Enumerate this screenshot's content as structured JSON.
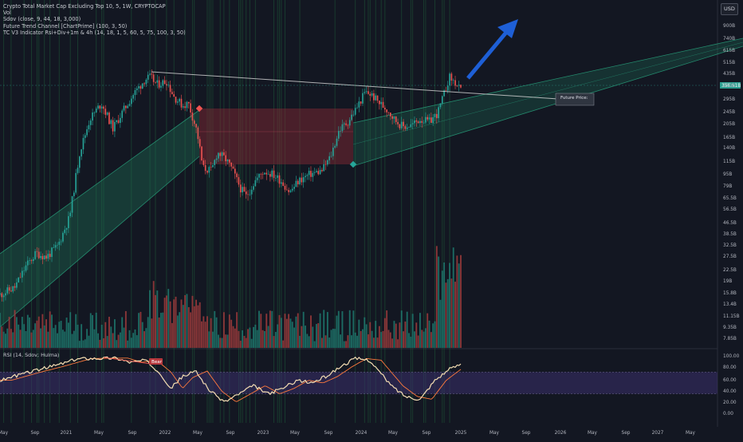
{
  "header": {
    "title": "Crypto Total Market Cap Excluding Top 10, 5, 1W, CRYPTOCAP",
    "indicators": [
      "Vol",
      "Sdov (close, 9, 44, 18, 3,000)",
      "Future Trend Channel [ChartPrime] (100, 3, 50)",
      "TC V3 Indicator Rsi+Div+1m & 4h (14, 18, 1, 5, 60, 5, 75, 100, 3, 50)"
    ],
    "currency": "USD"
  },
  "price_scale": {
    "labels": [
      "900B",
      "740B",
      "615B",
      "515B",
      "435B",
      "350B",
      "295B",
      "245B",
      "205B",
      "165B",
      "140B",
      "115B",
      "95B",
      "79B",
      "65.5B",
      "56.5B",
      "46.5B",
      "38.5B",
      "32.5B",
      "27.5B",
      "22.5B",
      "19B",
      "15.8B",
      "13.4B",
      "11.15B",
      "9.35B",
      "7.85B"
    ],
    "current_price_label": "356.51B"
  },
  "rsi_scale": {
    "labels": [
      "100.00",
      "80.00",
      "60.00",
      "40.00",
      "20.00",
      "0.00"
    ]
  },
  "rsi_panel": {
    "title": "RSI (14, Sdov; Hulma)",
    "bear_label": "Bear"
  },
  "future_price_label": "Future Price:",
  "time_axis": {
    "labels": [
      "May",
      "Sep",
      "2021",
      "May",
      "Sep",
      "2022",
      "May",
      "Sep",
      "2023",
      "May",
      "Sep",
      "2024",
      "May",
      "Sep",
      "2025",
      "May",
      "Sep",
      "2026",
      "May",
      "Sep",
      "2027",
      "May"
    ]
  },
  "chart_data": {
    "type": "candlestick",
    "title": "Crypto Total Market Cap Excluding Top 10, 5, 1W, CRYPTOCAP",
    "timeframe": "1W",
    "y_scale": "log",
    "ylim": [
      "7.85B",
      "900B"
    ],
    "price_path_approx": [
      {
        "x": "May 2020",
        "y": "20B"
      },
      {
        "x": "Sep 2020",
        "y": "30B"
      },
      {
        "x": "2021",
        "y": "38B"
      },
      {
        "x": "May 2021",
        "y": "300B"
      },
      {
        "x": "Nov 2021",
        "y": "435B"
      },
      {
        "x": "2022",
        "y": "390B"
      },
      {
        "x": "Apr 2022",
        "y": "320B"
      },
      {
        "x": "Jun 2022",
        "y": "115B"
      },
      {
        "x": "2023",
        "y": "80B"
      },
      {
        "x": "Mar 2023",
        "y": "115B"
      },
      {
        "x": "Oct 2023",
        "y": "100B"
      },
      {
        "x": "2024",
        "y": "205B"
      },
      {
        "x": "Mar 2024",
        "y": "350B"
      },
      {
        "x": "Aug 2024",
        "y": "215B"
      },
      {
        "x": "Dec 2024",
        "y": "435B"
      },
      {
        "x": "Jan 2025",
        "y": "356.51B"
      }
    ],
    "current_price": "356.51B",
    "annotations": [
      "Future Price:",
      "Bear"
    ],
    "grid": true
  },
  "colors": {
    "background": "#131722",
    "bull": "#26a69a",
    "bear": "#ef5350",
    "channel": "#1f7a5c",
    "arrow": "#1e5fd6",
    "rsi_line": "#f5deb3",
    "rsi_signal": "#ff7a3d",
    "rsi_band": "#3a2f6b",
    "current_price_tag": "#2a9d8f"
  }
}
